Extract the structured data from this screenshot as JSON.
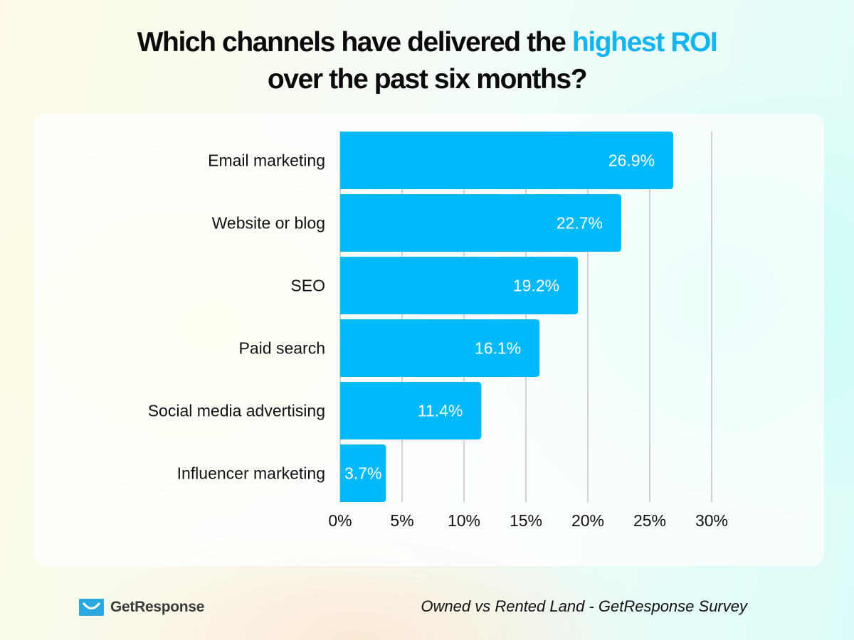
{
  "header": {
    "title_part1": "Which channels have delivered the ",
    "title_highlight": "highest ROI",
    "title_line2": "over the past six months?"
  },
  "colors": {
    "bar": "#00b9fb",
    "highlight": "#13b5f1",
    "grid": "#c4c4c4",
    "logo": "#2aa9e0"
  },
  "chart_data": {
    "type": "bar",
    "orientation": "horizontal",
    "title": "Which channels have delivered the highest ROI over the past six months?",
    "categories": [
      "Email marketing",
      "Website or blog",
      "SEO",
      "Paid search",
      "Social media advertising",
      "Influencer marketing"
    ],
    "values": [
      26.9,
      22.7,
      19.2,
      16.1,
      11.4,
      3.7
    ],
    "value_labels": [
      "26.9%",
      "22.7%",
      "19.2%",
      "16.1%",
      "11.4%",
      "3.7%"
    ],
    "xlabel": "",
    "ylabel": "",
    "xlim": [
      0,
      30
    ],
    "xticks": [
      0,
      5,
      10,
      15,
      20,
      25,
      30
    ],
    "xtick_labels": [
      "0%",
      "5%",
      "10%",
      "15%",
      "20%",
      "25%",
      "30%"
    ],
    "grid": true,
    "legend": "none",
    "units": "%"
  },
  "footer": {
    "brand": "GetResponse",
    "source": "Owned vs Rented Land - GetResponse Survey"
  }
}
